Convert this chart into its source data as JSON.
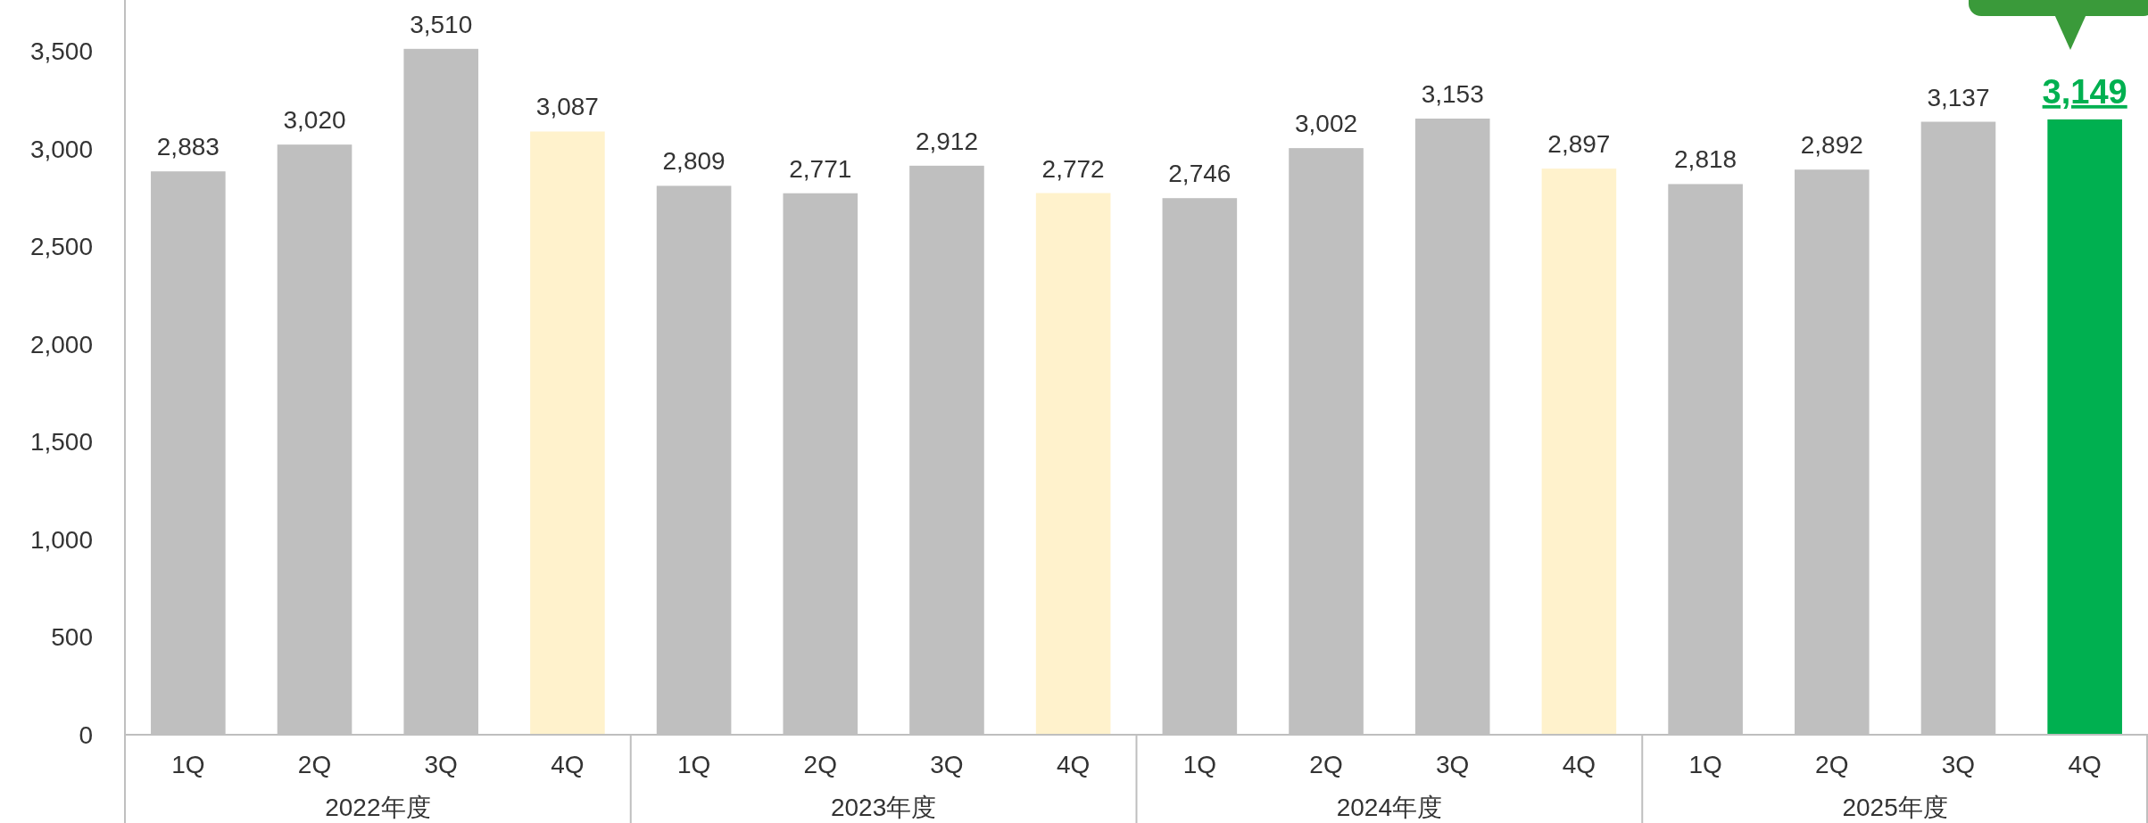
{
  "chart_data": {
    "type": "bar",
    "categories": [
      "1Q",
      "2Q",
      "3Q",
      "4Q",
      "1Q",
      "2Q",
      "3Q",
      "4Q",
      "1Q",
      "2Q",
      "3Q",
      "4Q",
      "1Q",
      "2Q",
      "3Q",
      "4Q"
    ],
    "values": [
      2883,
      3020,
      3510,
      3087,
      2809,
      2771,
      2912,
      2772,
      2746,
      3002,
      3153,
      2897,
      2818,
      2892,
      3137,
      3149
    ],
    "colors": [
      "#bfbfbf",
      "#bfbfbf",
      "#bfbfbf",
      "#fff2cc",
      "#bfbfbf",
      "#bfbfbf",
      "#bfbfbf",
      "#fff2cc",
      "#bfbfbf",
      "#bfbfbf",
      "#bfbfbf",
      "#fff2cc",
      "#bfbfbf",
      "#bfbfbf",
      "#bfbfbf",
      "#00b050"
    ],
    "annotations": [
      "2022年度",
      "2023年度",
      "2024年度",
      "2025年度"
    ],
    "ylim": [
      0,
      3760
    ],
    "yticks": [
      0,
      500,
      {
        "value": 1000,
        "label": "1,000"
      },
      {
        "value": 1500,
        "label": "1,500"
      },
      {
        "value": 2000,
        "label": "2,000"
      },
      {
        "value": 2500,
        "label": "2,500"
      },
      {
        "value": 3000,
        "label": "3,000"
      },
      {
        "value": 3500,
        "label": "3,500"
      }
    ],
    "value_labels": [
      "2,883",
      "3,020",
      "3,510",
      "3,087",
      "2,809",
      "2,771",
      "2,912",
      "2,772",
      "2,746",
      "3,002",
      "3,153",
      "2,897",
      "2,818",
      "2,892",
      "3,137",
      "3,149"
    ]
  }
}
